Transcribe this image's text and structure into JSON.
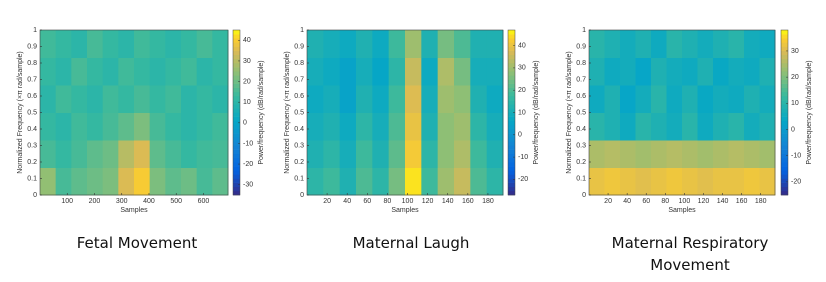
{
  "chart_data": [
    {
      "type": "heatmap",
      "title": "Fetal Movement",
      "xlabel": "Samples",
      "ylabel": "Normalized Frequency (×π rad/sample)",
      "colorbar_label": "Power/frequency (dB/rad/sample)",
      "colormap": "parula",
      "xlim": [
        0,
        690
      ],
      "xticks": [
        100,
        200,
        300,
        400,
        500,
        600
      ],
      "ylim": [
        0,
        1
      ],
      "yticks": [
        0,
        0.1,
        0.2,
        0.3,
        0.4,
        0.5,
        0.6,
        0.7,
        0.8,
        0.9,
        1
      ],
      "clim": [
        -35,
        45
      ],
      "cticks": [
        -30,
        -20,
        -10,
        0,
        10,
        20,
        30,
        40
      ],
      "values": [
        [
          25,
          15,
          18,
          20,
          22,
          35,
          40,
          22,
          18,
          20,
          15,
          18
        ],
        [
          15,
          12,
          15,
          18,
          20,
          30,
          35,
          18,
          15,
          12,
          14,
          15
        ],
        [
          12,
          10,
          14,
          12,
          15,
          18,
          22,
          15,
          12,
          10,
          12,
          14
        ],
        [
          10,
          14,
          12,
          10,
          14,
          12,
          15,
          12,
          14,
          10,
          12,
          10
        ],
        [
          12,
          10,
          15,
          12,
          10,
          14,
          12,
          10,
          12,
          14,
          10,
          12
        ],
        [
          14,
          12,
          10,
          15,
          12,
          10,
          14,
          12,
          10,
          12,
          15,
          12
        ]
      ]
    },
    {
      "type": "heatmap",
      "title": "Maternal Laugh",
      "xlabel": "Samples",
      "ylabel": "Normalized Frequency (×π rad/sample)",
      "colorbar_label": "Power/frequency (dB/rad/sample)",
      "colormap": "parula",
      "xlim": [
        0,
        195
      ],
      "xticks": [
        20,
        40,
        60,
        80,
        100,
        120,
        140,
        160,
        180
      ],
      "ylim": [
        0,
        1
      ],
      "yticks": [
        0,
        0.1,
        0.2,
        0.3,
        0.4,
        0.5,
        0.6,
        0.7,
        0.8,
        0.9,
        1
      ],
      "clim": [
        -27,
        47
      ],
      "cticks": [
        -20,
        -10,
        0,
        10,
        20,
        30,
        40
      ],
      "values": [
        [
          15,
          18,
          12,
          20,
          15,
          25,
          45,
          18,
          30,
          35,
          20,
          15
        ],
        [
          12,
          15,
          10,
          18,
          12,
          22,
          42,
          15,
          28,
          32,
          18,
          12
        ],
        [
          10,
          12,
          8,
          15,
          10,
          20,
          40,
          12,
          28,
          30,
          15,
          10
        ],
        [
          8,
          10,
          5,
          12,
          8,
          18,
          38,
          10,
          30,
          28,
          12,
          8
        ],
        [
          10,
          8,
          5,
          10,
          6,
          15,
          35,
          8,
          32,
          25,
          10,
          10
        ],
        [
          12,
          10,
          8,
          12,
          8,
          18,
          30,
          12,
          25,
          20,
          12,
          12
        ]
      ]
    },
    {
      "type": "heatmap",
      "title": "Maternal Respiratory Movement",
      "xlabel": "Samples",
      "ylabel": "Normalized Frequency (×π rad/sample)",
      "colorbar_label": "Power/frequency (dB/rad/sample)",
      "colormap": "parula",
      "xlim": [
        0,
        195
      ],
      "xticks": [
        20,
        40,
        60,
        80,
        100,
        120,
        140,
        160,
        180
      ],
      "ylim": [
        0,
        1
      ],
      "yticks": [
        0,
        0.1,
        0.2,
        0.3,
        0.4,
        0.5,
        0.6,
        0.7,
        0.8,
        0.9,
        1
      ],
      "clim": [
        -25,
        38
      ],
      "cticks": [
        -20,
        -10,
        0,
        10,
        20,
        30
      ],
      "values": [
        [
          32,
          33,
          32,
          31,
          32,
          33,
          32,
          31,
          32,
          32,
          33,
          32
        ],
        [
          25,
          26,
          25,
          24,
          25,
          26,
          25,
          24,
          25,
          26,
          25,
          24
        ],
        [
          10,
          8,
          5,
          10,
          8,
          6,
          10,
          5,
          8,
          10,
          6,
          8
        ],
        [
          5,
          8,
          3,
          6,
          10,
          5,
          8,
          4,
          6,
          5,
          8,
          6
        ],
        [
          8,
          5,
          6,
          3,
          8,
          6,
          5,
          8,
          4,
          6,
          5,
          8
        ],
        [
          10,
          8,
          6,
          8,
          5,
          10,
          8,
          6,
          8,
          10,
          6,
          5
        ]
      ]
    }
  ]
}
